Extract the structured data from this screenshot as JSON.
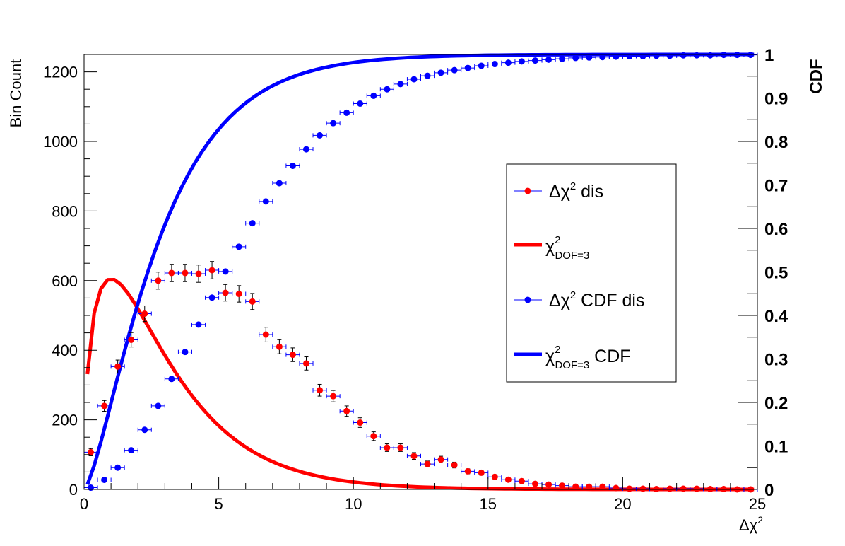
{
  "chart_data": {
    "type": "line",
    "title": "",
    "xlabel": "Δχ²",
    "ylabel": "Bin Count",
    "y2label": "CDF",
    "xlim": [
      0,
      25
    ],
    "ylim": [
      0,
      1250
    ],
    "y2lim": [
      0,
      1
    ],
    "grid": false,
    "legend_position": "center-right",
    "x_ticks": [
      "0",
      "5",
      "10",
      "15",
      "20",
      "25"
    ],
    "y_ticks": [
      "0",
      "200",
      "400",
      "600",
      "800",
      "1000",
      "1200"
    ],
    "y2_ticks": [
      "0",
      "0.1",
      "0.2",
      "0.3",
      "0.4",
      "0.5",
      "0.6",
      "0.7",
      "0.8",
      "0.9",
      "1"
    ],
    "series": [
      {
        "name": "Δχ² dis",
        "kind": "points",
        "axis": "left",
        "color": "#ff0000",
        "bin_width": 0.5,
        "x": [
          0.25,
          0.75,
          1.25,
          1.75,
          2.25,
          2.75,
          3.25,
          3.75,
          4.25,
          4.75,
          5.25,
          5.75,
          6.25,
          6.75,
          7.25,
          7.75,
          8.25,
          8.75,
          9.25,
          9.75,
          10.25,
          10.75,
          11.25,
          11.75,
          12.25,
          12.75,
          13.25,
          13.75,
          14.25,
          14.75,
          15.25,
          15.75,
          16.25,
          16.75,
          17.25,
          17.75,
          18.25,
          18.75,
          19.25,
          19.75,
          20.25,
          20.75,
          21.25,
          21.75,
          22.25,
          22.75,
          23.25,
          23.75,
          24.25,
          24.75
        ],
        "values": [
          107,
          240,
          353,
          430,
          505,
          600,
          622,
          622,
          620,
          630,
          565,
          562,
          540,
          445,
          410,
          387,
          362,
          285,
          268,
          225,
          192,
          153,
          120,
          120,
          96,
          73,
          86,
          70,
          52,
          48,
          36,
          28,
          24,
          16,
          14,
          11,
          8,
          8,
          8,
          4,
          2,
          2,
          1,
          2,
          2,
          2,
          1,
          1,
          0,
          0
        ]
      },
      {
        "name": "χ² DOF=3",
        "kind": "curve",
        "axis": "left",
        "color": "#ff0000",
        "function": "chi2_pdf_dof3",
        "scale": 2500
      },
      {
        "name": "Δχ² CDF dis",
        "kind": "points",
        "axis": "right",
        "color": "#0000ff",
        "bin_width": 0.5,
        "x": [
          0.25,
          0.75,
          1.25,
          1.75,
          2.25,
          2.75,
          3.25,
          3.75,
          4.25,
          4.75,
          5.25,
          5.75,
          6.25,
          6.75,
          7.25,
          7.75,
          8.25,
          8.75,
          9.25,
          9.75,
          10.25,
          10.75,
          11.25,
          11.75,
          12.25,
          12.75,
          13.25,
          13.75,
          14.25,
          14.75,
          15.25,
          15.75,
          16.25,
          16.75,
          17.25,
          17.75,
          18.25,
          18.75,
          19.25,
          19.75,
          20.25,
          20.75,
          21.25,
          21.75,
          22.25,
          22.75,
          23.25,
          23.75,
          24.25,
          24.75
        ],
        "values": [
          0.004,
          0.022,
          0.05,
          0.09,
          0.137,
          0.192,
          0.254,
          0.316,
          0.379,
          0.441,
          0.501,
          0.558,
          0.612,
          0.662,
          0.704,
          0.744,
          0.782,
          0.814,
          0.842,
          0.866,
          0.887,
          0.905,
          0.92,
          0.932,
          0.943,
          0.951,
          0.958,
          0.964,
          0.969,
          0.974,
          0.978,
          0.981,
          0.984,
          0.986,
          0.988,
          0.99,
          0.992,
          0.993,
          0.994,
          0.995,
          0.996,
          0.996,
          0.997,
          0.997,
          0.998,
          0.998,
          0.998,
          0.999,
          0.999,
          0.999
        ]
      },
      {
        "name": "χ² DOF=3 CDF",
        "kind": "curve",
        "axis": "right",
        "color": "#0000ff",
        "function": "chi2_cdf_dof3",
        "scale": 1
      }
    ]
  },
  "legend": [
    {
      "symbol": "Δχ",
      "sup": "2",
      "sub": "",
      "suffix": " dis",
      "style": "marker",
      "color": "#ff0000"
    },
    {
      "symbol": "χ",
      "sup": "2",
      "sub": "DOF=3",
      "suffix": "",
      "style": "line",
      "color": "#ff0000"
    },
    {
      "symbol": "Δχ",
      "sup": "2",
      "sub": "",
      "suffix": " CDF dis",
      "style": "marker",
      "color": "#0000ff"
    },
    {
      "symbol": "χ",
      "sup": "2",
      "sub": "DOF=3",
      "suffix": " CDF",
      "style": "line",
      "color": "#0000ff"
    }
  ],
  "x_axis_title": {
    "symbol": "Δχ",
    "sup": "2"
  }
}
